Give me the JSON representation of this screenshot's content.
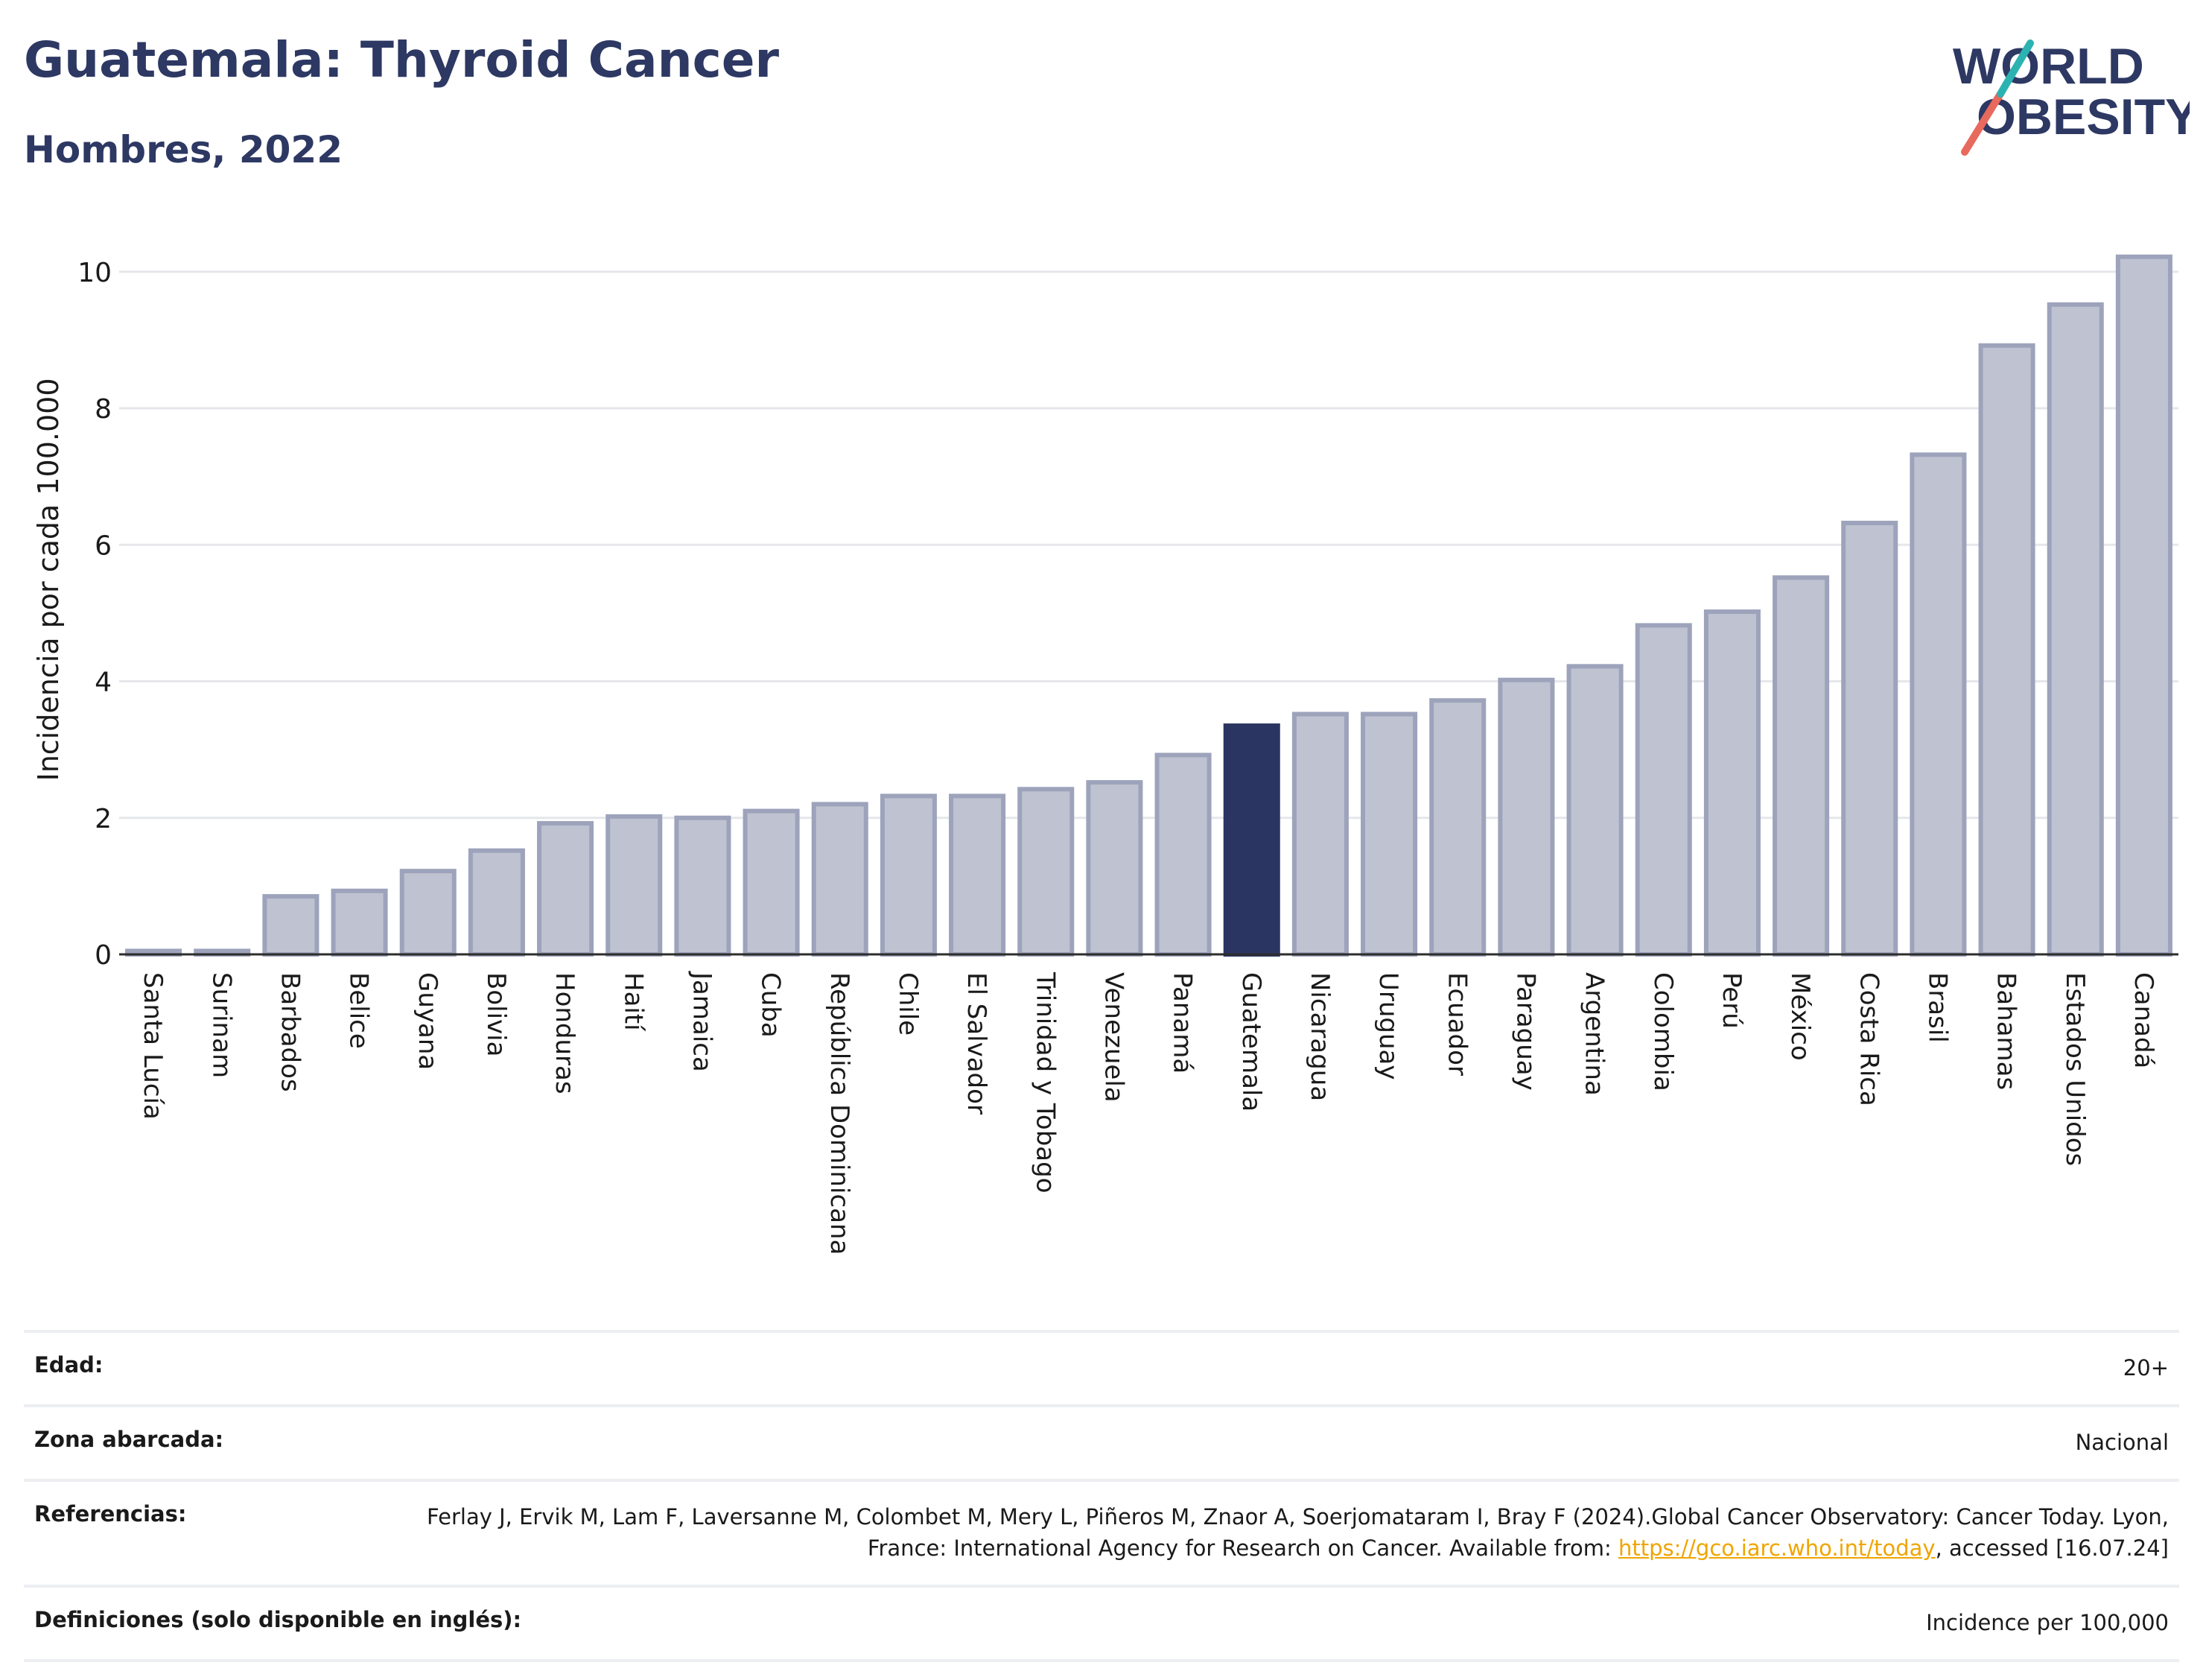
{
  "header": {
    "title": "Guatemala: Thyroid Cancer",
    "subtitle": "Hombres, 2022"
  },
  "logo": {
    "line1": "WORLD",
    "line2": "OBESITY"
  },
  "colors": {
    "title": "#2d3863",
    "bar_default_fill": "#bfc3d1",
    "bar_default_stroke": "#9da3bb",
    "bar_highlight": "#2b3561",
    "grid": "#e6e7eb",
    "link": "#f0a500"
  },
  "chart_data": {
    "type": "bar",
    "ylabel": "Incidencia por cada 100.000",
    "ylim": [
      0,
      10.5
    ],
    "yticks": [
      0,
      2,
      4,
      6,
      8,
      10
    ],
    "grid": true,
    "highlight": "Guatemala",
    "categories": [
      "Santa Lucía",
      "Surinam",
      "Barbados",
      "Belice",
      "Guyana",
      "Bolivia",
      "Honduras",
      "Haití",
      "Jamaica",
      "Cuba",
      "República Dominicana",
      "Chile",
      "El Salvador",
      "Trinidad y Tobago",
      "Venezuela",
      "Panamá",
      "Guatemala",
      "Nicaragua",
      "Uruguay",
      "Ecuador",
      "Paraguay",
      "Argentina",
      "Colombia",
      "Perú",
      "México",
      "Costa Rica",
      "Brasil",
      "Bahamas",
      "Estados Unidos",
      "Canadá"
    ],
    "values": [
      0.05,
      0.05,
      0.85,
      0.93,
      1.22,
      1.52,
      1.92,
      2.02,
      2.0,
      2.1,
      2.2,
      2.32,
      2.32,
      2.42,
      2.52,
      2.92,
      3.35,
      3.52,
      3.52,
      3.72,
      4.02,
      4.22,
      4.82,
      5.02,
      5.52,
      6.32,
      7.32,
      8.92,
      9.52,
      10.22
    ]
  },
  "meta": {
    "rows": [
      {
        "label": "Edad:",
        "value": "20+"
      },
      {
        "label": "Zona abarcada:",
        "value": "Nacional"
      },
      {
        "label": "Referencias:",
        "value_parts": {
          "before": "Ferlay J, Ervik M, Lam F, Laversanne M, Colombet M, Mery L, Piñeros M, Znaor A, Soerjomataram I, Bray F (2024).Global Cancer Observatory: Cancer Today. Lyon, France: International Agency for Research on Cancer. Available from: ",
          "link": "https://gco.iarc.who.int/today",
          "after": ", accessed [16.07.24]"
        }
      },
      {
        "label": "Definiciones (solo disponible en inglés):",
        "value": "Incidence per 100,000"
      }
    ]
  }
}
